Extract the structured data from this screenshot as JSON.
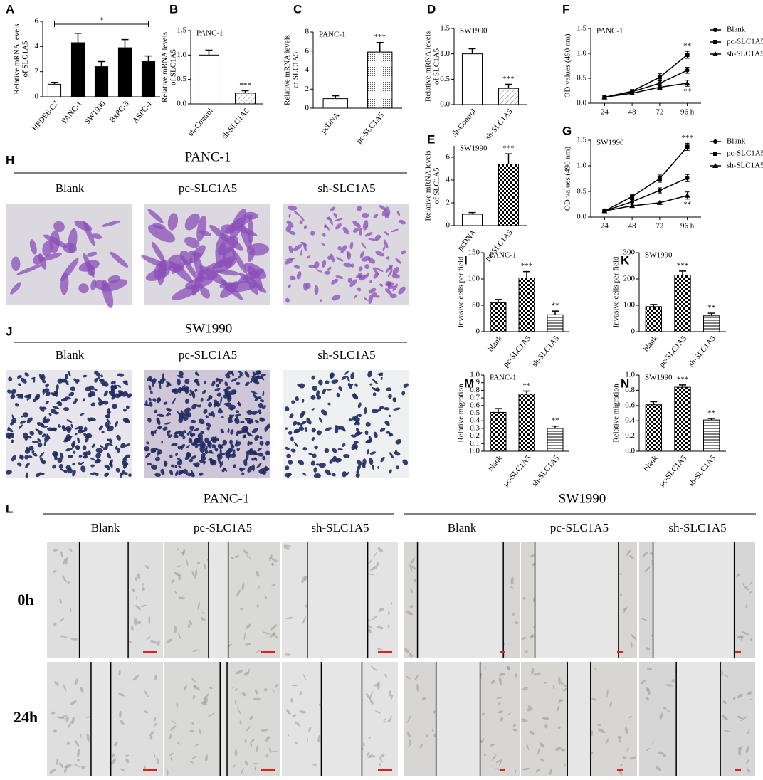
{
  "chart_data": [
    {
      "panel": "A",
      "type": "bar",
      "ylabel": [
        "Relative mRNA levels",
        "of SLC1A5"
      ],
      "categories": [
        "HPDE6-C7",
        "PANC-1",
        "SW1990",
        "BxPC-3",
        "ASPC-1"
      ],
      "values": [
        1.0,
        4.3,
        2.4,
        3.9,
        2.8
      ],
      "errors": [
        0.15,
        0.75,
        0.4,
        0.65,
        0.45
      ],
      "fills": [
        "white",
        "black",
        "black",
        "black",
        "black"
      ],
      "ylim": [
        0,
        6
      ],
      "yticks": [
        0,
        2,
        4,
        6
      ],
      "bracket_label": "*"
    },
    {
      "panel": "B",
      "type": "bar",
      "title": "PANC-1",
      "ylabel": [
        "Relative mRNA levels",
        "of SLC1A5"
      ],
      "categories": [
        "sh-Control",
        "sh-SLC1A5"
      ],
      "values": [
        1.0,
        0.22
      ],
      "errors": [
        0.1,
        0.05
      ],
      "significance": [
        null,
        "***"
      ],
      "fills": [
        "white",
        "diagonal"
      ],
      "ylim": [
        0,
        1.5
      ],
      "yticks": [
        {
          "value": 0,
          "label": "0.0"
        },
        0.5,
        {
          "value": 1,
          "label": "1.0"
        },
        1.5
      ]
    },
    {
      "panel": "C",
      "type": "bar",
      "title": "PANC-1",
      "ylabel": [
        "Relative mRNA levels",
        "of SLC1A5"
      ],
      "categories": [
        "pcDNA",
        "pc-SLC1A5"
      ],
      "values": [
        1.0,
        5.9
      ],
      "errors": [
        0.3,
        1.0
      ],
      "significance": [
        null,
        "***"
      ],
      "fills": [
        "white",
        "dots"
      ],
      "ylim": [
        0,
        8
      ],
      "yticks": [
        0,
        2,
        4,
        6,
        8
      ]
    },
    {
      "panel": "D",
      "type": "bar",
      "title": "SW1990",
      "ylabel": [
        "Relative mRNA levels",
        "of SLC1A5"
      ],
      "categories": [
        "sh-Control",
        "sh-SLC1A5"
      ],
      "values": [
        1.0,
        0.32
      ],
      "errors": [
        0.1,
        0.08
      ],
      "significance": [
        null,
        "***"
      ],
      "fills": [
        "white",
        "diagonal"
      ],
      "ylim": [
        0,
        1.5
      ],
      "yticks": [
        {
          "value": 0,
          "label": "0.0"
        },
        0.5,
        {
          "value": 1,
          "label": "1.0"
        },
        1.5
      ]
    },
    {
      "panel": "E",
      "type": "bar",
      "title": "SW1990",
      "ylabel": [
        "Relative mRNA levels",
        "of SLC1A5"
      ],
      "categories": [
        "pcDNA",
        "pc-SLC1A5"
      ],
      "values": [
        1.0,
        5.4
      ],
      "errors": [
        0.15,
        0.9
      ],
      "significance": [
        null,
        "***"
      ],
      "fills": [
        "white",
        "checker"
      ],
      "ylim": [
        0,
        7
      ],
      "yticks": [
        0,
        2,
        4,
        6
      ]
    },
    {
      "panel": "F",
      "type": "line",
      "title": "PANC-1",
      "ylabel": "OD values (490 nm)",
      "x": [
        24,
        48,
        72,
        96
      ],
      "xlim": [
        12,
        108
      ],
      "xticks": [
        24,
        48,
        72,
        {
          "value": 96,
          "label": "96 h"
        }
      ],
      "ylim": [
        0,
        1.5
      ],
      "yticks": [
        {
          "value": 0,
          "label": "0.0"
        },
        0.5,
        {
          "value": 1,
          "label": "1.0"
        },
        1.5
      ],
      "series": [
        {
          "name": "Blank",
          "marker": "circle",
          "color": "#000000",
          "values": [
            0.12,
            0.23,
            0.4,
            0.66
          ],
          "errors": [
            0.01,
            0.03,
            0.05,
            0.06
          ],
          "end_label": null
        },
        {
          "name": "pc-SLC1A5",
          "marker": "square",
          "color": "#000000",
          "values": [
            0.12,
            0.24,
            0.52,
            0.97
          ],
          "errors": [
            0.01,
            0.03,
            0.07,
            0.07
          ],
          "end_label": "**"
        },
        {
          "name": "sh-SLC1A5",
          "marker": "triangle",
          "color": "#000000",
          "values": [
            0.12,
            0.2,
            0.32,
            0.4
          ],
          "errors": [
            0.01,
            0.02,
            0.04,
            0.06
          ],
          "end_label": "**"
        }
      ]
    },
    {
      "panel": "G",
      "type": "line",
      "title": "SW1990",
      "ylabel": "OD values (490 nm)",
      "x": [
        24,
        48,
        72,
        96
      ],
      "xlim": [
        12,
        108
      ],
      "xticks": [
        24,
        48,
        72,
        {
          "value": 96,
          "label": "96 h"
        }
      ],
      "ylim": [
        0,
        1.5
      ],
      "yticks": [
        {
          "value": 0,
          "label": "0.0"
        },
        0.5,
        {
          "value": 1,
          "label": "1.0"
        },
        1.5
      ],
      "series": [
        {
          "name": "Blank",
          "marker": "circle",
          "color": "#000000",
          "values": [
            0.12,
            0.3,
            0.52,
            0.76
          ],
          "errors": [
            0.01,
            0.04,
            0.05,
            0.07
          ],
          "end_label": null
        },
        {
          "name": "pc-SLC1A5",
          "marker": "square",
          "color": "#000000",
          "values": [
            0.12,
            0.4,
            0.75,
            1.37
          ],
          "errors": [
            0.01,
            0.05,
            0.07,
            0.07
          ],
          "end_label": "***"
        },
        {
          "name": "sh-SLC1A5",
          "marker": "triangle",
          "color": "#000000",
          "values": [
            0.12,
            0.22,
            0.28,
            0.42
          ],
          "errors": [
            0.01,
            0.03,
            0.03,
            0.07
          ],
          "end_label": "**"
        }
      ]
    },
    {
      "panel": "I",
      "type": "bar",
      "title": "PANC-1",
      "ylabel": "Invasive cells per field",
      "categories": [
        "blank",
        "pc-SLC1A5",
        "sh-SLC1A5"
      ],
      "values": [
        55,
        102,
        32
      ],
      "errors": [
        6,
        12,
        7
      ],
      "significance": [
        null,
        "***",
        "**"
      ],
      "fills": [
        "checker",
        "checker",
        "horizontal"
      ],
      "ylim": [
        0,
        150
      ],
      "yticks": [
        0,
        50,
        100,
        150
      ]
    },
    {
      "panel": "K",
      "type": "bar",
      "title": "SW1990",
      "ylabel": "Invasive cells per field",
      "categories": [
        "blank",
        "pc-SLC1A5",
        "sh-SLC1A5"
      ],
      "values": [
        95,
        215,
        60
      ],
      "errors": [
        8,
        15,
        10
      ],
      "significance": [
        null,
        "***",
        "**"
      ],
      "fills": [
        "checker",
        "checker",
        "horizontal"
      ],
      "ylim": [
        0,
        300
      ],
      "yticks": [
        0,
        100,
        200,
        300
      ]
    },
    {
      "panel": "M",
      "type": "bar",
      "title": "PANC-1",
      "ylabel": "Relative migration",
      "categories": [
        "blank",
        "pc-SLC1A5",
        "sh-SLC1A5"
      ],
      "values": [
        0.51,
        0.75,
        0.3
      ],
      "errors": [
        0.05,
        0.04,
        0.03
      ],
      "significance": [
        null,
        "**",
        "**"
      ],
      "fills": [
        "checker",
        "checker",
        "horizontal"
      ],
      "ylim": [
        0,
        1
      ],
      "yticks": [
        {
          "value": 0,
          "label": "0.0"
        },
        0.1,
        0.2,
        0.3,
        0.4,
        0.5,
        0.6,
        0.7,
        0.8,
        0.9,
        {
          "value": 1,
          "label": "1.0"
        }
      ]
    },
    {
      "panel": "N",
      "type": "bar",
      "title": "SW1990",
      "ylabel": "Relative migration",
      "categories": [
        "blank",
        "pc-SLC1A5",
        "sh-SLC1A5"
      ],
      "values": [
        0.61,
        0.84,
        0.41
      ],
      "errors": [
        0.04,
        0.03,
        0.02
      ],
      "significance": [
        null,
        "***",
        "**"
      ],
      "fills": [
        "checker",
        "checker",
        "horizontal"
      ],
      "ylim": [
        0,
        1
      ],
      "yticks": [
        {
          "value": 0,
          "label": "0.0"
        },
        0.2,
        0.4,
        0.6,
        0.8,
        {
          "value": 1,
          "label": "1.0"
        }
      ]
    }
  ],
  "micrographs": [
    {
      "panel": "H",
      "title": "PANC-1",
      "columns": [
        "Blank",
        "pc-SLC1A5",
        "sh-SLC1A5"
      ]
    },
    {
      "panel": "J",
      "title": "SW1990",
      "columns": [
        "Blank",
        "pc-SLC1A5",
        "sh-SLC1A5"
      ]
    },
    {
      "panel": "L",
      "groups": [
        "PANC-1",
        "SW1990"
      ],
      "columns": [
        "Blank",
        "pc-SLC1A5",
        "sh-SLC1A5",
        "Blank",
        "pc-SLC1A5",
        "sh-SLC1A5"
      ],
      "rows": [
        "0h",
        "24h"
      ]
    }
  ]
}
